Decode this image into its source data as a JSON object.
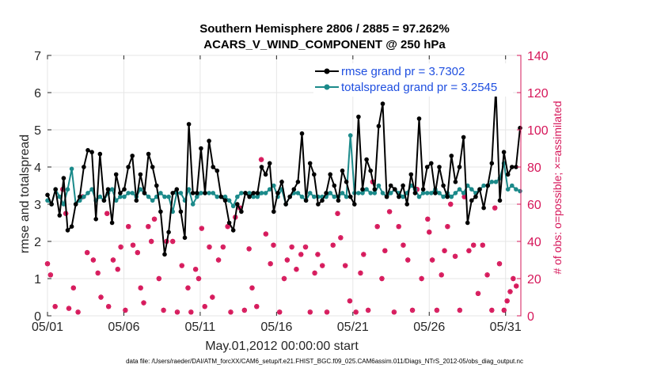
{
  "chart_data": {
    "type": "line",
    "title": "Southern Hemisphere 2806 / 2885 = 97.262%",
    "subtitle": "ACARS_V_WIND_COMPONENT @ 250 hPa",
    "xlabel": "May.01,2012 00:00:00 start",
    "ylabel": "rmse and totalspread",
    "ylabel_right": "# of obs: o=possible; ×=assimilated",
    "footnote": "data file: /Users/raeder/DAI/ATM_forcXX/CAM6_setup/f.e21.FHIST_BGC.f09_025.CAM6assim.011/Diags_NTrS_2012-05/obs_diag_output.nc",
    "ylim": [
      0,
      7
    ],
    "ylim_right": [
      0,
      140
    ],
    "xlim": [
      1,
      32
    ],
    "x_ticks": [
      1,
      6,
      11,
      16,
      21,
      26,
      31
    ],
    "x_tick_labels": [
      "05/01",
      "05/06",
      "05/11",
      "05/16",
      "05/21",
      "05/26",
      "05/31"
    ],
    "y_ticks": [
      0,
      1,
      2,
      3,
      4,
      5,
      6,
      7
    ],
    "y_ticks_right": [
      0,
      20,
      40,
      60,
      80,
      100,
      120,
      140
    ],
    "colors": {
      "rmse": "#000000",
      "spread": "#1b8a8a",
      "obs": "#d6175a",
      "legend_text": "#1f4fe0"
    },
    "series": [
      {
        "name": "rmse grand pr = 3.7302",
        "values": [
          3.25,
          3.0,
          3.4,
          2.7,
          3.7,
          2.3,
          2.4,
          3.0,
          3.2,
          4.0,
          4.45,
          4.4,
          2.6,
          4.35,
          3.1,
          3.4,
          2.5,
          3.8,
          3.3,
          3.4,
          4.0,
          4.3,
          3.1,
          3.8,
          3.3,
          4.35,
          4.0,
          3.5,
          2.8,
          1.65,
          2.25,
          3.3,
          3.4,
          2.8,
          2.1,
          5.15,
          3.3,
          3.3,
          4.5,
          3.3,
          4.7,
          4.0,
          3.9,
          3.2,
          3.1,
          2.5,
          2.3,
          3.0,
          2.8,
          3.3,
          3.2,
          3.3,
          3.3,
          4.0,
          3.8,
          4.1,
          2.8,
          3.3,
          3.6,
          3.0,
          3.2,
          3.4,
          3.6,
          4.9,
          3.1,
          4.1,
          3.8,
          3.0,
          3.1,
          3.3,
          3.8,
          3.5,
          3.1,
          3.9,
          3.6,
          3.2,
          3.0,
          5.35,
          3.4,
          4.2,
          3.9,
          3.4,
          5.1,
          5.7,
          3.2,
          3.5,
          3.4,
          3.2,
          3.5,
          3.0,
          3.8,
          3.3,
          5.3,
          3.4,
          4.0,
          4.1,
          3.3,
          4.0,
          3.5,
          3.2,
          4.3,
          3.6,
          4.0,
          4.8,
          2.5,
          3.1,
          3.2,
          3.4,
          2.9,
          3.5,
          4.1,
          6.1,
          3.1,
          4.4,
          3.8,
          4.0,
          4.0,
          5.05
        ]
      },
      {
        "name": "totalspread grand pr = 3.2545",
        "values": [
          3.1,
          3.0,
          3.4,
          3.2,
          3.0,
          3.4,
          3.95,
          3.0,
          3.1,
          3.2,
          3.3,
          3.4,
          3.1,
          3.2,
          3.1,
          3.3,
          3.4,
          3.1,
          3.2,
          3.2,
          3.3,
          3.3,
          3.2,
          3.4,
          3.3,
          3.2,
          3.1,
          3.2,
          3.3,
          3.2,
          3.2,
          2.8,
          3.3,
          3.3,
          3.1,
          3.4,
          3.0,
          3.2,
          3.3,
          3.3,
          3.3,
          3.3,
          3.2,
          3.2,
          3.2,
          3.1,
          2.95,
          3.2,
          3.3,
          3.3,
          3.3,
          3.2,
          3.2,
          3.3,
          3.3,
          3.4,
          3.5,
          3.2,
          3.4,
          3.0,
          3.2,
          3.3,
          3.3,
          3.2,
          3.1,
          3.3,
          3.2,
          3.2,
          3.2,
          3.2,
          3.3,
          3.2,
          3.2,
          3.3,
          3.2,
          4.85,
          3.3,
          3.3,
          3.3,
          3.4,
          3.3,
          3.3,
          3.5,
          3.3,
          3.2,
          3.3,
          3.4,
          3.3,
          3.2,
          3.3,
          3.5,
          3.4,
          3.2,
          3.3,
          3.3,
          3.3,
          3.4,
          3.3,
          3.2,
          3.3,
          3.2,
          3.3,
          3.4,
          3.3,
          3.5,
          3.4,
          3.3,
          3.4,
          3.5,
          3.5,
          3.6,
          3.6,
          3.7,
          4.1,
          3.4,
          3.5,
          3.4,
          3.35
        ]
      }
    ],
    "obs_possible": [
      [
        1.0,
        28
      ],
      [
        1.2,
        22
      ],
      [
        1.5,
        5
      ],
      [
        2.0,
        68
      ],
      [
        2.2,
        55
      ],
      [
        2.4,
        4
      ],
      [
        2.7,
        15
      ],
      [
        3.0,
        2
      ],
      [
        3.3,
        64
      ],
      [
        3.6,
        34
      ],
      [
        4.0,
        30
      ],
      [
        4.3,
        23
      ],
      [
        4.5,
        10
      ],
      [
        4.9,
        55
      ],
      [
        5.0,
        5
      ],
      [
        5.3,
        30
      ],
      [
        5.6,
        25
      ],
      [
        5.8,
        37
      ],
      [
        6.1,
        3
      ],
      [
        6.3,
        48
      ],
      [
        6.6,
        38
      ],
      [
        6.9,
        34
      ],
      [
        7.1,
        15
      ],
      [
        7.3,
        7
      ],
      [
        7.6,
        48
      ],
      [
        7.8,
        40
      ],
      [
        8.0,
        52
      ],
      [
        8.3,
        20
      ],
      [
        8.6,
        3
      ],
      [
        8.8,
        40
      ],
      [
        9.2,
        40
      ],
      [
        9.5,
        2
      ],
      [
        9.8,
        27
      ],
      [
        10.2,
        15
      ],
      [
        10.4,
        2
      ],
      [
        10.7,
        25
      ],
      [
        10.9,
        20
      ],
      [
        11.1,
        47
      ],
      [
        11.3,
        5
      ],
      [
        11.6,
        37
      ],
      [
        11.8,
        10
      ],
      [
        12.2,
        30
      ],
      [
        12.5,
        37
      ],
      [
        12.8,
        48
      ],
      [
        13.0,
        2
      ],
      [
        13.3,
        53
      ],
      [
        13.6,
        58
      ],
      [
        13.9,
        3
      ],
      [
        14.2,
        36
      ],
      [
        14.4,
        15
      ],
      [
        14.7,
        5
      ],
      [
        15.0,
        84
      ],
      [
        15.3,
        44
      ],
      [
        15.6,
        28
      ],
      [
        15.8,
        38
      ],
      [
        16.2,
        2
      ],
      [
        16.5,
        20
      ],
      [
        16.7,
        30
      ],
      [
        17.0,
        37
      ],
      [
        17.3,
        25
      ],
      [
        17.6,
        33
      ],
      [
        17.9,
        37
      ],
      [
        18.2,
        2
      ],
      [
        18.5,
        23
      ],
      [
        18.7,
        33
      ],
      [
        19.0,
        27
      ],
      [
        19.3,
        2
      ],
      [
        19.7,
        38
      ],
      [
        20.0,
        55
      ],
      [
        20.2,
        42
      ],
      [
        20.5,
        27
      ],
      [
        20.8,
        8
      ],
      [
        21.2,
        2
      ],
      [
        21.5,
        23
      ],
      [
        21.7,
        33
      ],
      [
        22.0,
        3
      ],
      [
        22.3,
        72
      ],
      [
        22.6,
        48
      ],
      [
        22.9,
        20
      ],
      [
        23.1,
        35
      ],
      [
        23.4,
        56
      ],
      [
        23.7,
        2
      ],
      [
        24.0,
        48
      ],
      [
        24.3,
        38
      ],
      [
        24.6,
        30
      ],
      [
        24.9,
        3
      ],
      [
        25.2,
        68
      ],
      [
        25.5,
        20
      ],
      [
        25.9,
        52
      ],
      [
        26.0,
        45
      ],
      [
        26.2,
        30
      ],
      [
        26.5,
        3
      ],
      [
        26.8,
        22
      ],
      [
        27.0,
        35
      ],
      [
        27.2,
        48
      ],
      [
        27.4,
        60
      ],
      [
        27.7,
        32
      ],
      [
        28.0,
        3
      ],
      [
        28.3,
        64
      ],
      [
        28.6,
        35
      ],
      [
        28.9,
        38
      ],
      [
        29.2,
        12
      ],
      [
        29.5,
        38
      ],
      [
        29.8,
        22
      ],
      [
        30.1,
        3
      ],
      [
        30.3,
        58
      ],
      [
        30.6,
        28
      ],
      [
        30.9,
        3
      ],
      [
        31.1,
        8
      ],
      [
        31.3,
        13
      ],
      [
        31.5,
        20
      ],
      [
        31.7,
        16
      ]
    ]
  }
}
